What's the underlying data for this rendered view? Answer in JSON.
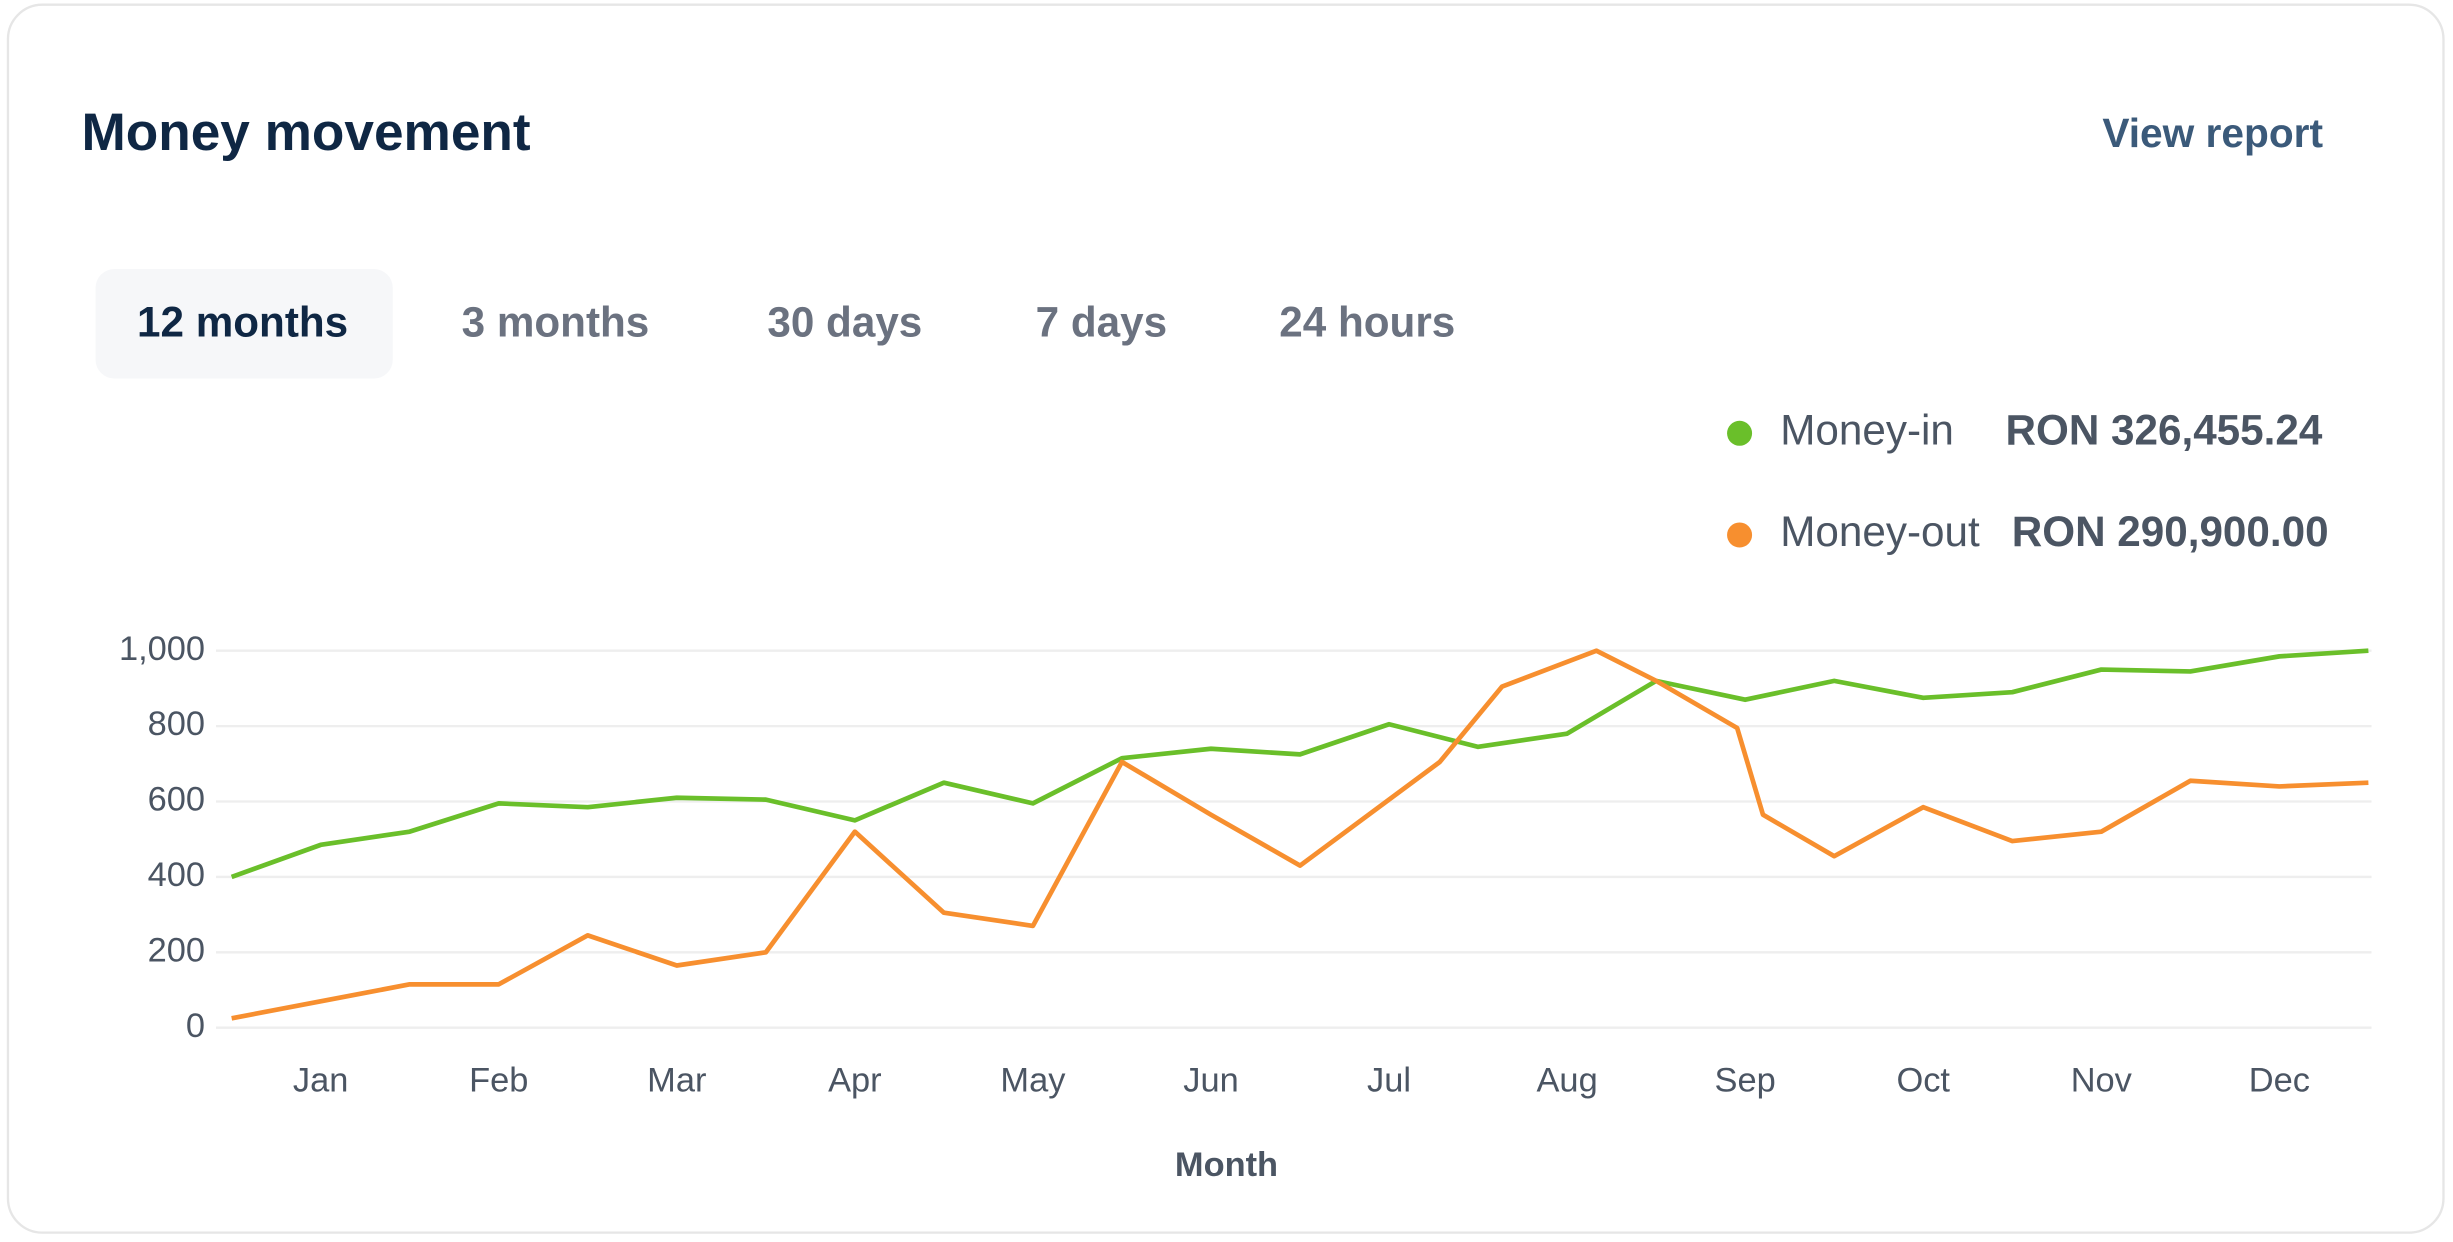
{
  "header": {
    "title": "Money movement",
    "link": "View report"
  },
  "tabs": [
    "12 months",
    "3 months",
    "30 days",
    "7 days",
    "24 hours"
  ],
  "active_tab": 0,
  "chart_data": {
    "type": "line",
    "xlabel": "Month",
    "xlim": [
      0,
      24
    ],
    "xticks": [
      {
        "value": 1,
        "label": "Jan"
      },
      {
        "value": 3,
        "label": "Feb"
      },
      {
        "value": 5,
        "label": "Mar"
      },
      {
        "value": 7,
        "label": "Apr"
      },
      {
        "value": 9,
        "label": "May"
      },
      {
        "value": 11,
        "label": "Jun"
      },
      {
        "value": 13,
        "label": "Jul"
      },
      {
        "value": 15,
        "label": "Aug"
      },
      {
        "value": 17,
        "label": "Sep"
      },
      {
        "value": 19,
        "label": "Oct"
      },
      {
        "value": 21,
        "label": "Nov"
      },
      {
        "value": 23,
        "label": "Dec"
      }
    ],
    "ylim": [
      0,
      1000
    ],
    "yticks": [
      0,
      200,
      400,
      600,
      800,
      {
        "value": 1000,
        "label": "1,000"
      }
    ],
    "grid": true,
    "legend": "top-right",
    "series": [
      {
        "name": "Money-in",
        "total": "RON 326,455.24",
        "color": "#6abf2a",
        "x": [
          0,
          1,
          2,
          3,
          4,
          5,
          6,
          7,
          8,
          9,
          10,
          11,
          12,
          13,
          14,
          15,
          16,
          17,
          18,
          19,
          20,
          21,
          22,
          23,
          24
        ],
        "values": [
          400,
          485,
          520,
          595,
          585,
          610,
          605,
          550,
          650,
          595,
          715,
          740,
          725,
          805,
          745,
          780,
          920,
          870,
          920,
          875,
          890,
          950,
          945,
          985,
          1000
        ]
      },
      {
        "name": "Money-out",
        "total": "RON 290,900.00",
        "color": "#f78f2f",
        "x": [
          0,
          1,
          2,
          3,
          4,
          5,
          6,
          7,
          8,
          9,
          10,
          11,
          12,
          13.57,
          14.27,
          15.33,
          16,
          16.91,
          17.2,
          18,
          19,
          20,
          21,
          22,
          23,
          24
        ],
        "values": [
          25,
          70,
          115,
          115,
          245,
          165,
          200,
          520,
          305,
          270,
          705,
          565,
          430,
          705,
          905,
          1000,
          920,
          795,
          565,
          455,
          585,
          495,
          520,
          655,
          640,
          650
        ]
      }
    ]
  }
}
